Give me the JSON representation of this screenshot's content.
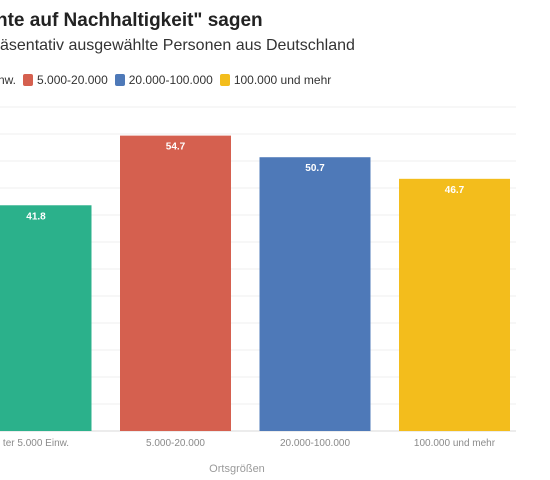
{
  "chart_data": {
    "type": "bar",
    "title": "hte auf Nachhaltigkeit\" sagen",
    "subtitle": "äsentativ ausgewählte Personen aus Deutschland",
    "legend": [
      "nw.",
      "5.000-20.000",
      "20.000-100.000",
      "100.000 und mehr"
    ],
    "legend_placement": "top-left",
    "categories": [
      "ter 5.000 Einw.",
      "5.000-20.000",
      "20.000-100.000",
      "100.000 und mehr"
    ],
    "values": [
      41.8,
      54.7,
      50.7,
      46.7
    ],
    "data_labels": [
      "41.8",
      "54.7",
      "50.7",
      "46.7"
    ],
    "colors": [
      "#2bb18b",
      "#d5604f",
      "#4e79b8",
      "#f3bd1c"
    ],
    "xlabel": "Ortsgrößen",
    "ylabel": "",
    "ylim": [
      0,
      60
    ],
    "grid": true
  }
}
